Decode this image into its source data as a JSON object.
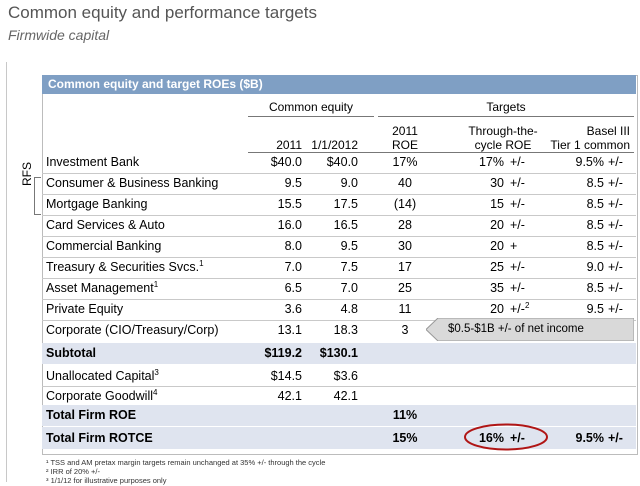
{
  "title": "Common equity and performance targets",
  "subtitle": "Firmwide capital",
  "table": {
    "caption": "Common equity and target ROEs ($B)",
    "group_common_equity": "Common equity",
    "group_targets": "Targets",
    "col_2011": "2011",
    "col_2012": "1/1/2012",
    "col_roe_1": "2011",
    "col_roe_2": "ROE",
    "col_cycle_1": "Through-the-",
    "col_cycle_2": "cycle ROE",
    "col_basel_1": "Basel III",
    "col_basel_2": "Tier 1 common",
    "rfs_label": "RFS",
    "rows": [
      {
        "label": "Investment Bank",
        "sup": "",
        "ce2011": "$40.0",
        "ce2012": "$40.0",
        "roe": "17%",
        "cycle": "17%",
        "cycle_pm": "+/-",
        "cycle_sup": "",
        "basel": "9.5%",
        "basel_pm": "+/-"
      },
      {
        "label": "Consumer & Business Banking",
        "sup": "",
        "ce2011": "9.5",
        "ce2012": "9.0",
        "roe": "40",
        "cycle": "30",
        "cycle_pm": "+/-",
        "cycle_sup": "",
        "basel": "8.5",
        "basel_pm": "+/-"
      },
      {
        "label": "Mortgage Banking",
        "sup": "",
        "ce2011": "15.5",
        "ce2012": "17.5",
        "roe": "(14)",
        "cycle": "15",
        "cycle_pm": "+/-",
        "cycle_sup": "",
        "basel": "8.5",
        "basel_pm": "+/-"
      },
      {
        "label": "Card Services & Auto",
        "sup": "",
        "ce2011": "16.0",
        "ce2012": "16.5",
        "roe": "28",
        "cycle": "20",
        "cycle_pm": "+/-",
        "cycle_sup": "",
        "basel": "8.5",
        "basel_pm": "+/-"
      },
      {
        "label": "Commercial Banking",
        "sup": "",
        "ce2011": "8.0",
        "ce2012": "9.5",
        "roe": "30",
        "cycle": "20",
        "cycle_pm": "+",
        "cycle_sup": "",
        "basel": "8.5",
        "basel_pm": "+/-"
      },
      {
        "label": "Treasury & Securities Svcs.",
        "sup": "1",
        "ce2011": "7.0",
        "ce2012": "7.5",
        "roe": "17",
        "cycle": "25",
        "cycle_pm": "+/-",
        "cycle_sup": "",
        "basel": "9.0",
        "basel_pm": "+/-"
      },
      {
        "label": "Asset Management",
        "sup": "1",
        "ce2011": "6.5",
        "ce2012": "7.0",
        "roe": "25",
        "cycle": "35",
        "cycle_pm": "+/-",
        "cycle_sup": "",
        "basel": "8.5",
        "basel_pm": "+/-"
      },
      {
        "label": "Private Equity",
        "sup": "",
        "ce2011": "3.6",
        "ce2012": "4.8",
        "roe": "11",
        "cycle": "20",
        "cycle_pm": "+/-",
        "cycle_sup": "2",
        "basel": "9.5",
        "basel_pm": "+/-"
      },
      {
        "label": "Corporate (CIO/Treasury/Corp)",
        "sup": "",
        "ce2011": "13.1",
        "ce2012": "18.3",
        "roe": "3",
        "cycle": "",
        "cycle_pm": "",
        "cycle_sup": "",
        "basel": "",
        "basel_pm": ""
      }
    ],
    "corporate_callout": "$0.5-$1B +/- of net income",
    "subtotal": {
      "label": "Subtotal",
      "ce2011": "$119.2",
      "ce2012": "$130.1"
    },
    "unallocated": {
      "label": "Unallocated Capital",
      "sup": "3",
      "ce2011": "$14.5",
      "ce2012": "$3.6"
    },
    "goodwill": {
      "label": "Corporate Goodwill",
      "sup": "4",
      "ce2011": "42.1",
      "ce2012": "42.1"
    },
    "total_roe": {
      "label": "Total Firm ROE",
      "roe": "11%"
    },
    "total_rotce": {
      "label": "Total Firm ROTCE",
      "roe": "15%",
      "cycle": "16%",
      "cycle_pm": "+/-",
      "basel": "9.5%",
      "basel_pm": "+/-"
    }
  },
  "footnotes": [
    "¹ TSS and AM pretax margin targets remain unchanged at 35% +/- through the cycle",
    "² IRR of 20% +/-",
    "³ 1/1/12 for illustrative purposes only"
  ]
}
